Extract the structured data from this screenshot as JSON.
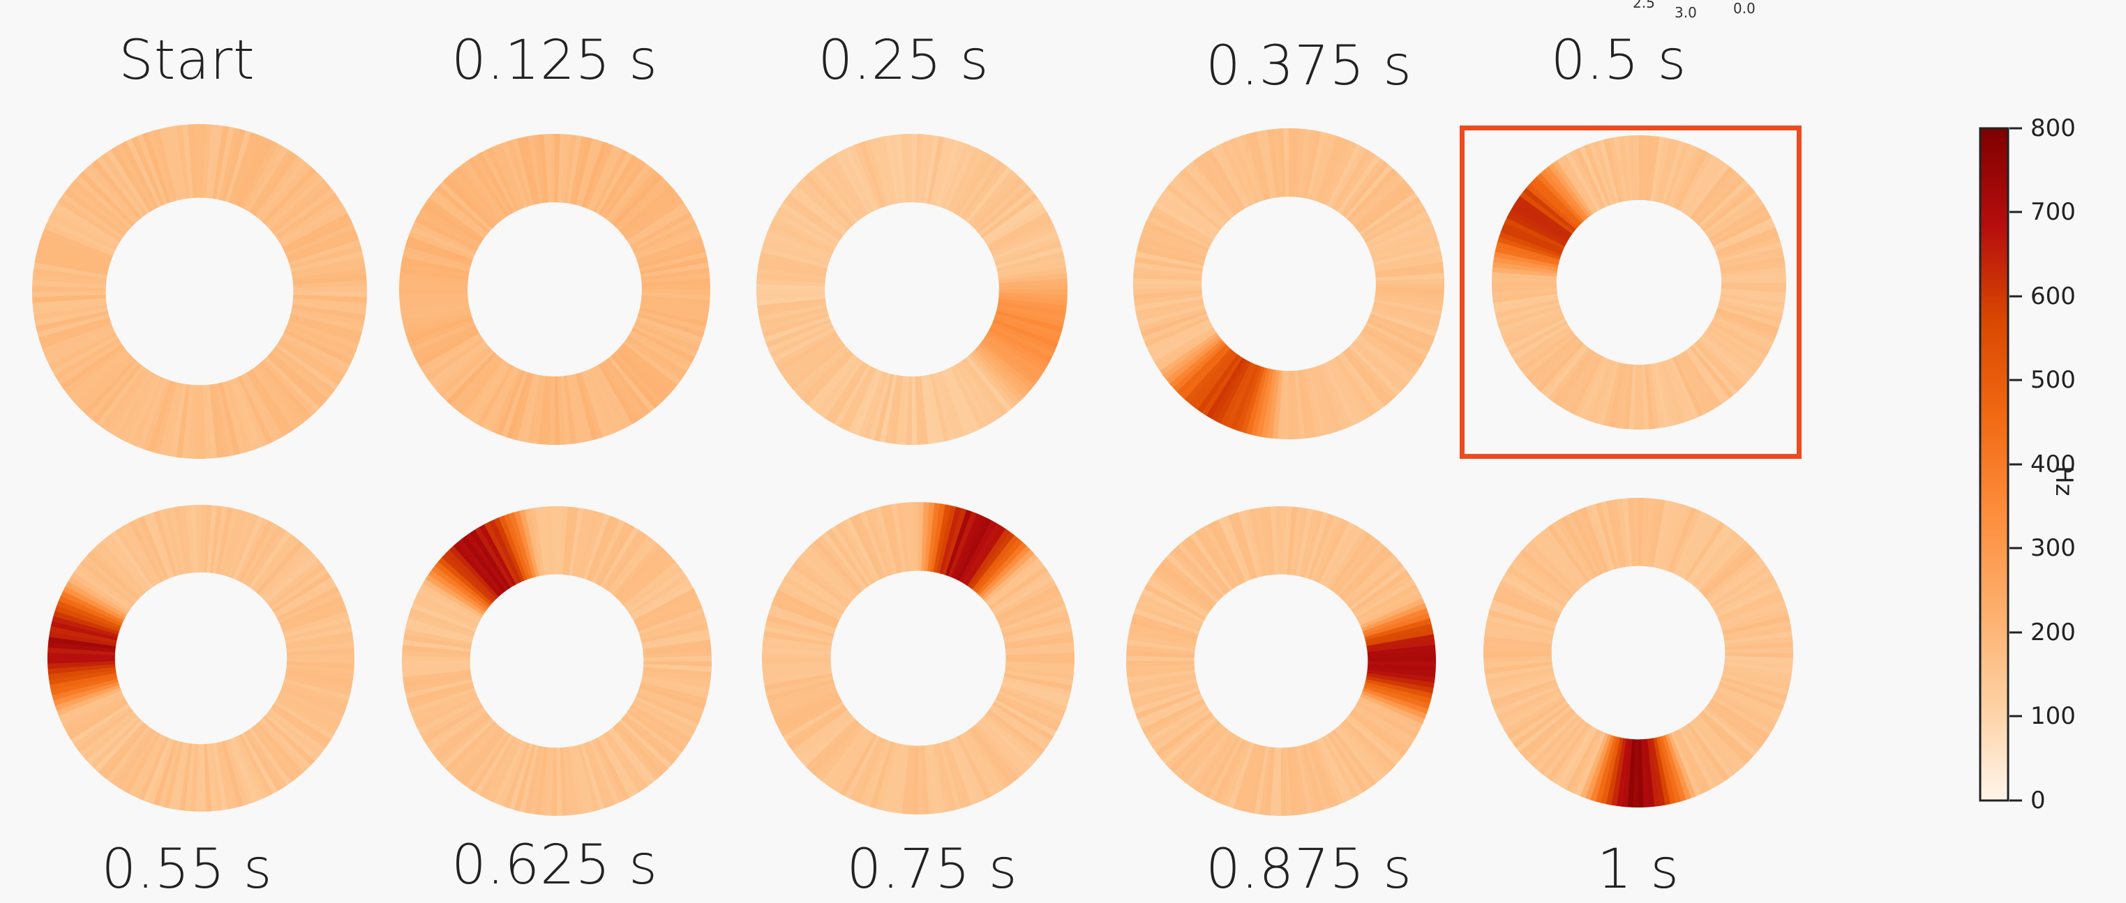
{
  "top_labels": [
    "Start",
    "0.125 s",
    "0.25 s",
    "0.375 s",
    "0.5 s"
  ],
  "bottom_labels": [
    "0.55 s",
    "0.625 s",
    "0.75 s",
    "0.875 s",
    "1 s"
  ],
  "corner_ticks": [
    "2.5",
    "3.0",
    "0.0"
  ],
  "colorbar": {
    "unit": "Hz",
    "ticks": [
      "800",
      "700",
      "600",
      "500",
      "400",
      "300",
      "200",
      "100",
      "0"
    ],
    "range": [
      0,
      800
    ],
    "colormap": [
      "#fff5eb",
      "#fdd0a2",
      "#fdae6b",
      "#fd8d3c",
      "#f16913",
      "#d94801",
      "#b50d0d",
      "#7f0000"
    ]
  },
  "highlight_color": "#ef4a1e",
  "rings": [
    {
      "panel": "Start",
      "base_rate": 0.22,
      "hotspot": null
    },
    {
      "panel": "0.125 s",
      "base_rate": 0.24,
      "hotspot": null
    },
    {
      "panel": "0.25 s",
      "base_rate": 0.18,
      "hotspot": {
        "angle_deg": 20,
        "width_deg": 60,
        "peak": 0.45
      }
    },
    {
      "panel": "0.375 s",
      "base_rate": 0.2,
      "hotspot": {
        "angle_deg": 120,
        "width_deg": 55,
        "peak": 0.78
      }
    },
    {
      "panel": "0.5 s",
      "base_rate": 0.2,
      "hotspot": {
        "angle_deg": 210,
        "width_deg": 55,
        "peak": 0.82
      }
    },
    {
      "panel": "0.55 s",
      "base_rate": 0.2,
      "hotspot": {
        "angle_deg": 185,
        "width_deg": 55,
        "peak": 0.93
      }
    },
    {
      "panel": "0.625 s",
      "base_rate": 0.2,
      "hotspot": {
        "angle_deg": 235,
        "width_deg": 50,
        "peak": 0.95
      }
    },
    {
      "panel": "0.75 s",
      "base_rate": 0.2,
      "hotspot": {
        "angle_deg": 295,
        "width_deg": 50,
        "peak": 0.96
      }
    },
    {
      "panel": "0.875 s",
      "base_rate": 0.2,
      "hotspot": {
        "angle_deg": 0,
        "width_deg": 50,
        "peak": 0.95
      }
    },
    {
      "panel": "1 s",
      "base_rate": 0.2,
      "hotspot": {
        "angle_deg": 90,
        "width_deg": 45,
        "peak": 0.97
      }
    }
  ]
}
